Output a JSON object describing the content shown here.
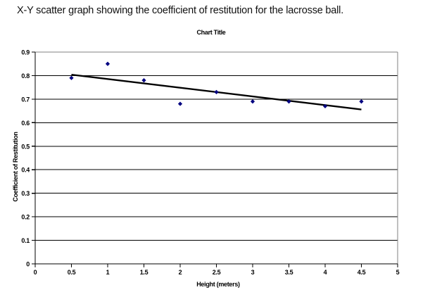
{
  "page": {
    "heading": "X-Y scatter graph showing the coefficient of restitution for the lacrosse ball."
  },
  "chart_data": {
    "type": "scatter",
    "title": "Chart Title",
    "xlabel": "Height (meters)",
    "ylabel": "Coefficient of Restitution",
    "x": [
      0.5,
      1,
      1.5,
      2,
      2.5,
      3,
      3.5,
      4,
      4.5
    ],
    "y": [
      0.79,
      0.85,
      0.78,
      0.68,
      0.73,
      0.69,
      0.69,
      0.67,
      0.69
    ],
    "xlim": [
      0,
      5
    ],
    "ylim": [
      0,
      0.9
    ],
    "x_tick_labels": [
      "0",
      "0.5",
      "1",
      "1.5",
      "2",
      "2.5",
      "3",
      "3.5",
      "4",
      "4.5",
      "5"
    ],
    "y_tick_labels": [
      "0",
      "0.1",
      "0.2",
      "0.3",
      "0.4",
      "0.5",
      "0.6",
      "0.7",
      "0.8",
      "0.9"
    ],
    "grid": "horizontal",
    "legend": "none",
    "marker": {
      "shape": "diamond",
      "color": "#000080"
    },
    "trendline": {
      "type": "linear",
      "x_start": 0.5,
      "y_start": 0.804,
      "x_end": 4.5,
      "y_end": 0.656,
      "color": "#000000"
    },
    "colors": {
      "gridline": "#000000",
      "plot_border": "#808080",
      "axis": "#000000"
    }
  }
}
